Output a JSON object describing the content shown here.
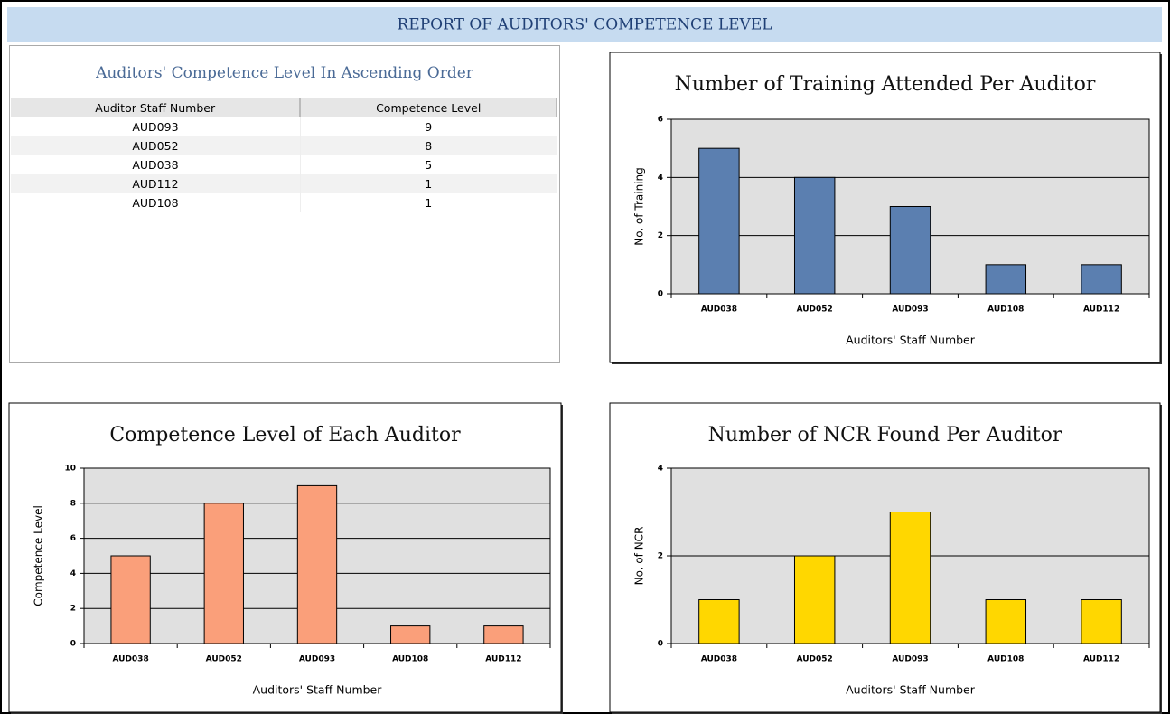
{
  "title": "REPORT OF AUDITORS' COMPETENCE LEVEL",
  "table": {
    "title": "Auditors' Competence Level In Ascending Order",
    "columns": [
      "Auditor Staff Number",
      "Competence Level"
    ],
    "rows": [
      [
        "AUD093",
        9
      ],
      [
        "AUD052",
        8
      ],
      [
        "AUD038",
        5
      ],
      [
        "AUD112",
        1
      ],
      [
        "AUD108",
        1
      ]
    ]
  },
  "chart_data": [
    {
      "type": "bar",
      "title": "Number of Training Attended Per Auditor",
      "x_label": "Auditors' Staff Number",
      "y_label": "No. of Training",
      "categories": [
        "AUD038",
        "AUD052",
        "AUD093",
        "AUD108",
        "AUD112"
      ],
      "values": [
        5,
        4,
        3,
        1,
        1
      ],
      "color": "#5b7fb0",
      "ylim": [
        0,
        6
      ],
      "yticks": [
        0,
        2,
        4,
        6
      ],
      "grid": true
    },
    {
      "type": "bar",
      "title": "Competence Level of Each Auditor",
      "x_label": "Auditors' Staff Number",
      "y_label": "Competence Level",
      "categories": [
        "AUD038",
        "AUD052",
        "AUD093",
        "AUD108",
        "AUD112"
      ],
      "values": [
        5,
        8,
        9,
        1,
        1
      ],
      "color": "#fa9f7a",
      "ylim": [
        0,
        10
      ],
      "yticks": [
        0,
        2,
        4,
        6,
        8,
        10
      ],
      "grid": true
    },
    {
      "type": "bar",
      "title": "Number of NCR Found Per Auditor",
      "x_label": "Auditors' Staff Number",
      "y_label": "No. of NCR",
      "categories": [
        "AUD038",
        "AUD052",
        "AUD093",
        "AUD108",
        "AUD112"
      ],
      "values": [
        1,
        2,
        3,
        1,
        1
      ],
      "color": "#ffd700",
      "ylim": [
        0,
        4
      ],
      "yticks": [
        0,
        2,
        4
      ],
      "grid": true
    }
  ]
}
